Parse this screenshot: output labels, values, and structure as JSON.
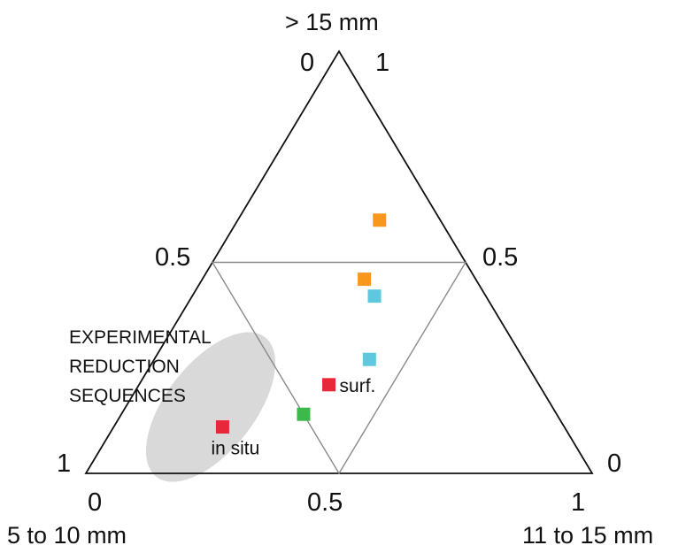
{
  "chart_data": {
    "type": "scatter",
    "subtype": "ternary",
    "axes": {
      "top": "> 15 mm",
      "bottom_left": "5 to 10 mm",
      "bottom_right": "11 to 15 mm"
    },
    "tick_labels": {
      "top_left": "0",
      "top_right": "1",
      "mid_left": "0.5",
      "mid_right": "0.5",
      "left": "1",
      "right": "0",
      "bottom_left": "0",
      "bottom_mid": "0.5",
      "bottom_right": "1"
    },
    "annotation": {
      "lines": [
        "EXPERIMENTAL",
        "REDUCTION",
        "SEQUENCES"
      ],
      "shape_color": "#d9d9d9"
    },
    "colors": {
      "triangle": "#111111",
      "subtriangle": "#8a8a8a",
      "red": "#e8283a",
      "orange": "#f7981d",
      "cyan": "#5ec8de",
      "green": "#3db84a"
    },
    "points": [
      {
        "color": "orange",
        "x": 0.58,
        "y": 0.6,
        "label": ""
      },
      {
        "color": "orange",
        "x": 0.55,
        "y": 0.46,
        "label": ""
      },
      {
        "color": "cyan",
        "x": 0.57,
        "y": 0.42,
        "label": ""
      },
      {
        "color": "cyan",
        "x": 0.56,
        "y": 0.27,
        "label": ""
      },
      {
        "color": "red",
        "x": 0.48,
        "y": 0.21,
        "label": "surf."
      },
      {
        "color": "green",
        "x": 0.43,
        "y": 0.14,
        "label": ""
      },
      {
        "color": "red",
        "x": 0.27,
        "y": 0.11,
        "label": "in situ"
      }
    ]
  }
}
